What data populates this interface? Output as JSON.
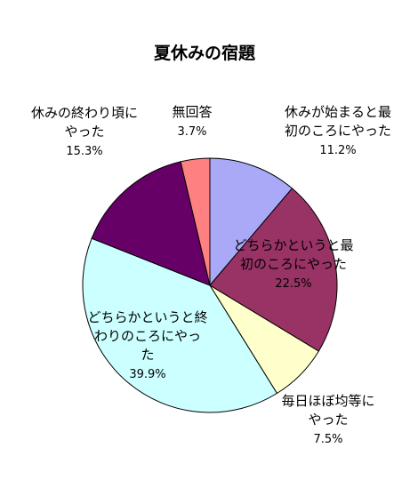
{
  "chart_data": {
    "type": "pie",
    "title": "夏休みの宿題",
    "start_angle_deg": 0,
    "direction": "clockwise",
    "slices": [
      {
        "lines": [
          "休みが始まると最",
          "初のころにやった"
        ],
        "value_label": "11.2%",
        "value": 11.2,
        "color": "#A9A9F7"
      },
      {
        "lines": [
          "どちらかというと最",
          "初のころにやった"
        ],
        "value_label": "22.5%",
        "value": 22.5,
        "color": "#993366"
      },
      {
        "lines": [
          "毎日ほぼ均等に",
          "やった"
        ],
        "value_label": "7.5%",
        "value": 7.5,
        "color": "#FFFFCC"
      },
      {
        "lines": [
          "どちらかというと終",
          "わりのころにやっ",
          "た"
        ],
        "value_label": "39.9%",
        "value": 39.9,
        "color": "#CCFFFF"
      },
      {
        "lines": [
          "休みの終わり頃に",
          "やった"
        ],
        "value_label": "15.3%",
        "value": 15.3,
        "color": "#660066"
      },
      {
        "lines": [
          "無回答"
        ],
        "value_label": "3.7%",
        "value": 3.7,
        "color": "#FF8080"
      }
    ]
  }
}
